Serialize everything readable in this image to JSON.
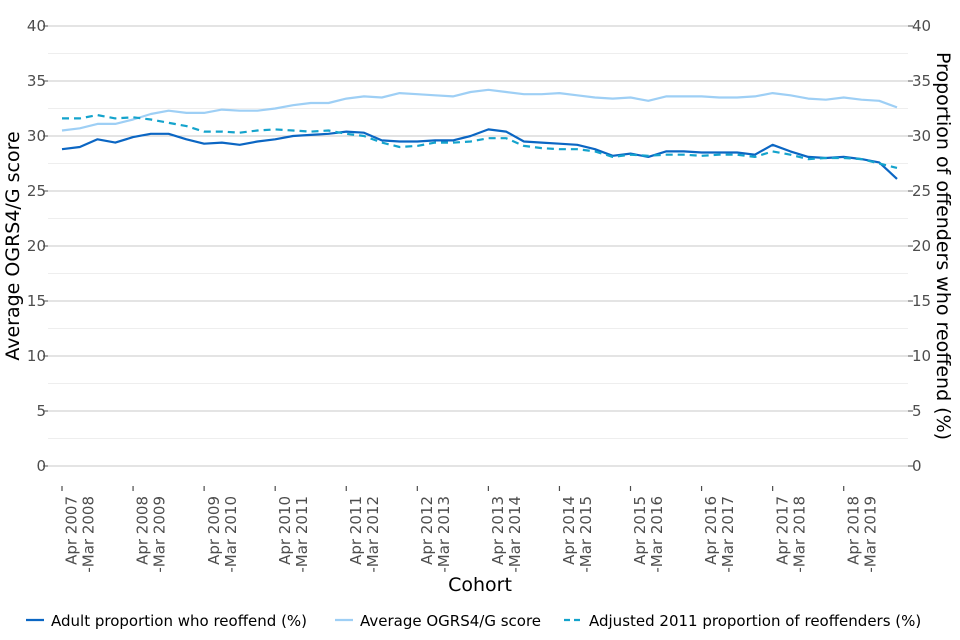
{
  "chart_data": {
    "type": "line",
    "xlabel": "Cohort",
    "ylabel_left": "Average OGRS4/G score",
    "ylabel_right": "Proportion of offenders who reoffend (%)",
    "ylim": [
      0,
      40
    ],
    "yticks": [
      0,
      5,
      10,
      15,
      20,
      25,
      30,
      35,
      40
    ],
    "grid": true,
    "legend_position": "bottom",
    "x_tick_labels": [
      [
        "Apr 2007",
        "-Mar 2008"
      ],
      [
        "Apr 2008",
        "-Mar 2009"
      ],
      [
        "Apr 2009",
        "-Mar 2010"
      ],
      [
        "Apr 2010",
        "-Mar 2011"
      ],
      [
        "Apr 2011",
        "-Mar 2012"
      ],
      [
        "Apr 2012",
        "-Mar 2013"
      ],
      [
        "Apr 2013",
        "-Mar 2014"
      ],
      [
        "Apr 2014",
        "-Mar 2015"
      ],
      [
        "Apr 2015",
        "-Mar 2016"
      ],
      [
        "Apr 2016",
        "-Mar 2017"
      ],
      [
        "Apr 2017",
        "-Mar 2018"
      ],
      [
        "Apr 2018",
        "-Mar 2019"
      ]
    ],
    "points_per_year": 4,
    "series": [
      {
        "name": "Adult proportion who reoffend (%)",
        "color": "#0b66c3",
        "dash": "solid",
        "values": [
          28.8,
          29.0,
          29.7,
          29.4,
          29.9,
          30.2,
          30.2,
          29.7,
          29.3,
          29.4,
          29.2,
          29.5,
          29.7,
          30.0,
          30.1,
          30.2,
          30.4,
          30.3,
          29.6,
          29.5,
          29.5,
          29.6,
          29.6,
          30.0,
          30.6,
          30.4,
          29.5,
          29.4,
          29.3,
          29.2,
          28.8,
          28.2,
          28.4,
          28.1,
          28.6,
          28.6,
          28.5,
          28.5,
          28.5,
          28.3,
          29.2,
          28.6,
          28.1,
          28.0,
          28.1,
          27.9,
          27.6,
          26.1
        ]
      },
      {
        "name": "Average OGRS4/G score",
        "color": "#9ecff5",
        "dash": "solid",
        "values": [
          30.5,
          30.7,
          31.1,
          31.1,
          31.5,
          32.0,
          32.3,
          32.1,
          32.1,
          32.4,
          32.3,
          32.3,
          32.5,
          32.8,
          33.0,
          33.0,
          33.4,
          33.6,
          33.5,
          33.9,
          33.8,
          33.7,
          33.6,
          34.0,
          34.2,
          34.0,
          33.8,
          33.8,
          33.9,
          33.7,
          33.5,
          33.4,
          33.5,
          33.2,
          33.6,
          33.6,
          33.6,
          33.5,
          33.5,
          33.6,
          33.9,
          33.7,
          33.4,
          33.3,
          33.5,
          33.3,
          33.2,
          32.6
        ]
      },
      {
        "name": "Adjusted 2011 proportion of reoffenders (%)",
        "color": "#14a3cc",
        "dash": "dashed",
        "values": [
          31.6,
          31.6,
          31.9,
          31.6,
          31.7,
          31.5,
          31.2,
          30.9,
          30.4,
          30.4,
          30.3,
          30.5,
          30.6,
          30.5,
          30.4,
          30.5,
          30.2,
          30.0,
          29.4,
          29.0,
          29.1,
          29.4,
          29.4,
          29.5,
          29.8,
          29.8,
          29.1,
          28.9,
          28.8,
          28.8,
          28.6,
          28.1,
          28.3,
          28.2,
          28.3,
          28.3,
          28.2,
          28.3,
          28.3,
          28.1,
          28.6,
          28.3,
          27.9,
          28.0,
          28.0,
          27.9,
          27.5,
          27.1
        ]
      }
    ]
  }
}
